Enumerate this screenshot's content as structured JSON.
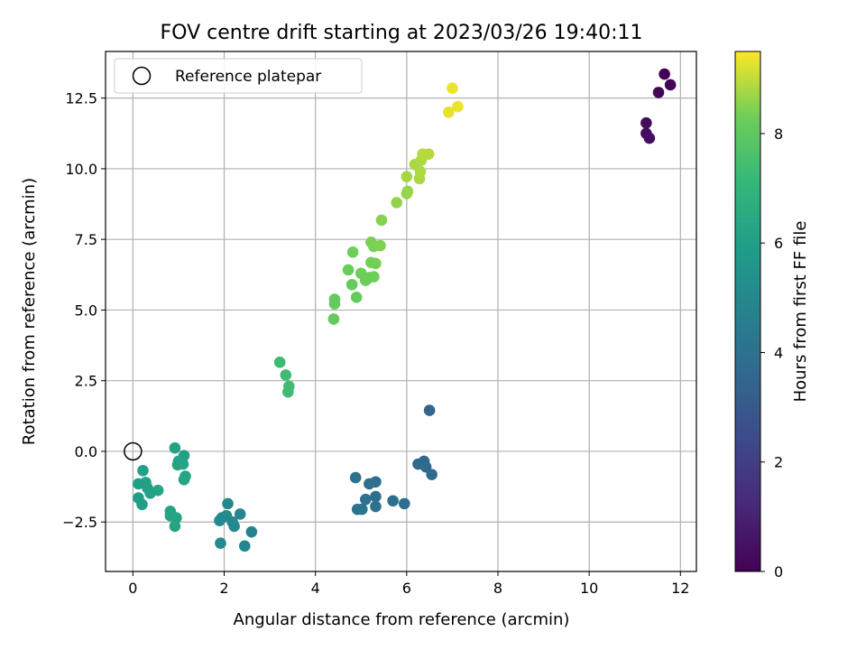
{
  "chart_data": {
    "type": "scatter",
    "title": "FOV centre drift starting at 2023/03/26 19:40:11",
    "xlabel": "Angular distance from reference (arcmin)",
    "ylabel": "Rotation from reference (arcmin)",
    "colorbar_label": "Hours from first FF file",
    "xlim": [
      -0.6,
      12.35
    ],
    "ylim": [
      -4.25,
      14.15
    ],
    "xticks": [
      0,
      2,
      4,
      6,
      8,
      10,
      12
    ],
    "xtick_labels": [
      "0",
      "2",
      "4",
      "6",
      "8",
      "10",
      "12"
    ],
    "yticks": [
      -2.5,
      0.0,
      2.5,
      5.0,
      7.5,
      10.0,
      12.5
    ],
    "ytick_labels": [
      "−2.5",
      "0.0",
      "2.5",
      "5.0",
      "7.5",
      "10.0",
      "12.5"
    ],
    "colorbar_range": [
      0,
      9.5
    ],
    "colorbar_ticks": [
      0,
      2,
      4,
      6,
      8
    ],
    "colorbar_tick_labels": [
      "0",
      "2",
      "4",
      "6",
      "8"
    ],
    "colormap": "viridis",
    "grid": true,
    "legend": {
      "placement": "top-left",
      "entries": [
        "Reference platepar"
      ]
    },
    "reference_point": {
      "x": 0,
      "y": 0
    },
    "points": [
      {
        "x": 11.65,
        "y": 13.35,
        "hours": 0.0
      },
      {
        "x": 11.78,
        "y": 12.97,
        "hours": 0.1
      },
      {
        "x": 11.52,
        "y": 12.7,
        "hours": 0.15
      },
      {
        "x": 11.25,
        "y": 11.62,
        "hours": 0.3
      },
      {
        "x": 11.25,
        "y": 11.25,
        "hours": 0.35
      },
      {
        "x": 11.32,
        "y": 11.08,
        "hours": 0.4
      },
      {
        "x": 6.5,
        "y": 1.45,
        "hours": 3.5
      },
      {
        "x": 6.25,
        "y": -0.45,
        "hours": 3.6
      },
      {
        "x": 6.38,
        "y": -0.35,
        "hours": 3.6
      },
      {
        "x": 6.42,
        "y": -0.55,
        "hours": 3.65
      },
      {
        "x": 6.55,
        "y": -0.82,
        "hours": 3.7
      },
      {
        "x": 5.95,
        "y": -1.85,
        "hours": 3.8
      },
      {
        "x": 5.7,
        "y": -1.75,
        "hours": 3.85
      },
      {
        "x": 5.32,
        "y": -1.08,
        "hours": 3.9
      },
      {
        "x": 5.18,
        "y": -1.15,
        "hours": 3.9
      },
      {
        "x": 5.32,
        "y": -1.6,
        "hours": 3.95
      },
      {
        "x": 5.1,
        "y": -1.7,
        "hours": 4.0
      },
      {
        "x": 5.32,
        "y": -1.95,
        "hours": 4.0
      },
      {
        "x": 4.88,
        "y": -0.93,
        "hours": 4.05
      },
      {
        "x": 4.92,
        "y": -2.05,
        "hours": 4.1
      },
      {
        "x": 5.02,
        "y": -2.05,
        "hours": 4.1
      },
      {
        "x": 2.6,
        "y": -2.85,
        "hours": 4.8
      },
      {
        "x": 2.45,
        "y": -3.35,
        "hours": 4.9
      },
      {
        "x": 2.35,
        "y": -2.22,
        "hours": 4.95
      },
      {
        "x": 2.18,
        "y": -2.5,
        "hours": 5.0
      },
      {
        "x": 2.22,
        "y": -2.65,
        "hours": 5.0
      },
      {
        "x": 2.08,
        "y": -1.85,
        "hours": 5.05
      },
      {
        "x": 2.05,
        "y": -2.28,
        "hours": 5.05
      },
      {
        "x": 1.95,
        "y": -2.35,
        "hours": 5.1
      },
      {
        "x": 1.9,
        "y": -2.45,
        "hours": 5.1
      },
      {
        "x": 1.92,
        "y": -3.25,
        "hours": 5.15
      },
      {
        "x": 1.12,
        "y": -0.15,
        "hours": 6.1
      },
      {
        "x": 0.92,
        "y": 0.12,
        "hours": 6.15
      },
      {
        "x": 1.0,
        "y": -0.35,
        "hours": 6.2
      },
      {
        "x": 1.1,
        "y": -0.45,
        "hours": 6.2
      },
      {
        "x": 0.98,
        "y": -0.48,
        "hours": 6.2
      },
      {
        "x": 1.15,
        "y": -0.88,
        "hours": 6.25
      },
      {
        "x": 1.12,
        "y": -1.0,
        "hours": 6.25
      },
      {
        "x": 0.55,
        "y": -1.38,
        "hours": 6.3
      },
      {
        "x": 0.22,
        "y": -0.68,
        "hours": 6.1
      },
      {
        "x": 0.28,
        "y": -1.1,
        "hours": 6.1
      },
      {
        "x": 0.12,
        "y": -1.15,
        "hours": 6.05
      },
      {
        "x": 0.32,
        "y": -1.3,
        "hours": 6.1
      },
      {
        "x": 0.38,
        "y": -1.48,
        "hours": 6.1
      },
      {
        "x": 0.12,
        "y": -1.65,
        "hours": 6.0
      },
      {
        "x": 0.2,
        "y": -1.88,
        "hours": 6.0
      },
      {
        "x": 0.82,
        "y": -2.12,
        "hours": 6.2
      },
      {
        "x": 0.82,
        "y": -2.28,
        "hours": 6.2
      },
      {
        "x": 0.95,
        "y": -2.35,
        "hours": 6.25
      },
      {
        "x": 0.92,
        "y": -2.65,
        "hours": 6.25
      },
      {
        "x": 3.22,
        "y": 3.15,
        "hours": 7.3
      },
      {
        "x": 3.35,
        "y": 2.7,
        "hours": 7.35
      },
      {
        "x": 3.42,
        "y": 2.3,
        "hours": 7.35
      },
      {
        "x": 3.4,
        "y": 2.1,
        "hours": 7.35
      },
      {
        "x": 4.4,
        "y": 4.68,
        "hours": 8.1
      },
      {
        "x": 4.42,
        "y": 5.22,
        "hours": 8.1
      },
      {
        "x": 4.42,
        "y": 5.38,
        "hours": 8.1
      },
      {
        "x": 4.8,
        "y": 5.9,
        "hours": 8.15
      },
      {
        "x": 4.9,
        "y": 5.45,
        "hours": 8.15
      },
      {
        "x": 4.72,
        "y": 6.42,
        "hours": 8.2
      },
      {
        "x": 4.82,
        "y": 7.05,
        "hours": 8.3
      },
      {
        "x": 5.0,
        "y": 6.3,
        "hours": 8.25
      },
      {
        "x": 5.1,
        "y": 6.05,
        "hours": 8.25
      },
      {
        "x": 5.18,
        "y": 6.15,
        "hours": 8.25
      },
      {
        "x": 5.28,
        "y": 6.18,
        "hours": 8.3
      },
      {
        "x": 5.22,
        "y": 6.68,
        "hours": 8.35
      },
      {
        "x": 5.32,
        "y": 6.65,
        "hours": 8.35
      },
      {
        "x": 5.22,
        "y": 7.4,
        "hours": 8.4
      },
      {
        "x": 5.28,
        "y": 7.25,
        "hours": 8.4
      },
      {
        "x": 5.42,
        "y": 7.28,
        "hours": 8.45
      },
      {
        "x": 5.45,
        "y": 8.18,
        "hours": 8.5
      },
      {
        "x": 5.78,
        "y": 8.8,
        "hours": 8.6
      },
      {
        "x": 6.0,
        "y": 9.12,
        "hours": 8.65
      },
      {
        "x": 6.02,
        "y": 9.2,
        "hours": 8.65
      },
      {
        "x": 6.0,
        "y": 9.72,
        "hours": 8.75
      },
      {
        "x": 6.18,
        "y": 10.15,
        "hours": 8.8
      },
      {
        "x": 6.28,
        "y": 9.65,
        "hours": 8.8
      },
      {
        "x": 6.3,
        "y": 9.9,
        "hours": 8.85
      },
      {
        "x": 6.32,
        "y": 10.3,
        "hours": 8.85
      },
      {
        "x": 6.35,
        "y": 10.52,
        "hours": 8.9
      },
      {
        "x": 6.48,
        "y": 10.52,
        "hours": 8.9
      },
      {
        "x": 6.92,
        "y": 12.0,
        "hours": 9.3
      },
      {
        "x": 7.0,
        "y": 12.85,
        "hours": 9.35
      },
      {
        "x": 7.12,
        "y": 12.2,
        "hours": 9.35
      }
    ]
  }
}
